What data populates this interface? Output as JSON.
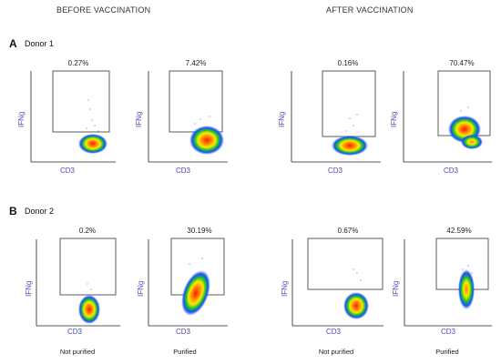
{
  "headers": {
    "before": "BEFORE VACCINATION",
    "after": "AFTER VACCINATION"
  },
  "rows": [
    {
      "letter": "A",
      "donor": "Donor 1",
      "plots": [
        {
          "pct": "0.27%",
          "ylabel": "IFNg",
          "xlabel": "CD3"
        },
        {
          "pct": "7.42%",
          "ylabel": "IFNg",
          "xlabel": "CD3"
        },
        {
          "pct": "0.16%",
          "ylabel": "IFNg",
          "xlabel": "CD3"
        },
        {
          "pct": "70.47%",
          "ylabel": "IFNg",
          "xlabel": "CD3"
        }
      ]
    },
    {
      "letter": "B",
      "donor": "Donor 2",
      "plots": [
        {
          "pct": "0.2%",
          "ylabel": "IFNg",
          "xlabel": "CD3"
        },
        {
          "pct": "30.19%",
          "ylabel": "IFNg",
          "xlabel": "CD3"
        },
        {
          "pct": "0.67%",
          "ylabel": "IFNg",
          "xlabel": "CD3"
        },
        {
          "pct": "42.59%",
          "ylabel": "IFNg",
          "xlabel": "CD3"
        }
      ]
    }
  ],
  "conditions": [
    "Not purified",
    "Purified",
    "Not purified",
    "Purified"
  ]
}
